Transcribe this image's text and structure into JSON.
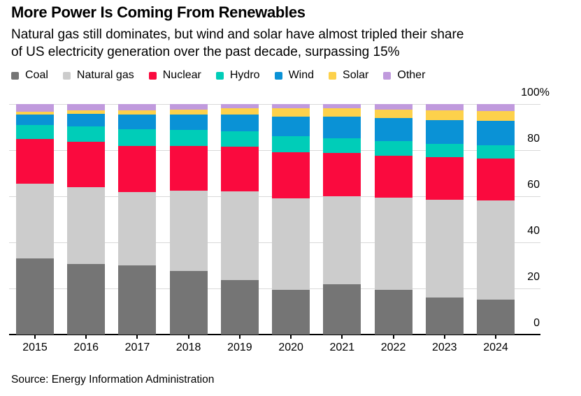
{
  "header": {
    "title": "More Power Is Coming From Renewables",
    "subtitle_lines": [
      "Natural gas still dominates, but wind and solar have almost tripled their share",
      "of US electricity generation over the past decade, surpassing 15%"
    ]
  },
  "chart_data": {
    "type": "bar",
    "stacked": true,
    "title": "More Power Is Coming From Renewables",
    "unit": "%",
    "ylim": [
      0,
      100
    ],
    "grid": "horizontal",
    "legend_position": "top",
    "categories": [
      "2015",
      "2016",
      "2017",
      "2018",
      "2019",
      "2020",
      "2021",
      "2022",
      "2023",
      "2024"
    ],
    "series": [
      {
        "name": "Coal",
        "color": "#757575",
        "values": [
          33.0,
          30.5,
          30.0,
          27.5,
          23.5,
          19.3,
          21.8,
          19.3,
          16.0,
          15.0
        ]
      },
      {
        "name": "Natural gas",
        "color": "#cccccc",
        "values": [
          32.3,
          33.5,
          31.7,
          35.0,
          38.5,
          39.9,
          38.2,
          40.1,
          42.5,
          43.2
        ]
      },
      {
        "name": "Nuclear",
        "color": "#fa0a3e",
        "values": [
          19.4,
          19.7,
          20.0,
          19.3,
          19.5,
          19.9,
          18.9,
          18.2,
          18.6,
          18.2
        ]
      },
      {
        "name": "Hydro",
        "color": "#00cdb8",
        "values": [
          6.3,
          6.5,
          7.4,
          7.0,
          6.6,
          7.0,
          6.3,
          6.2,
          5.7,
          5.8
        ]
      },
      {
        "name": "Wind",
        "color": "#0a92d6",
        "values": [
          4.5,
          5.5,
          6.3,
          6.5,
          7.3,
          8.3,
          9.2,
          10.2,
          10.1,
          10.4
        ]
      },
      {
        "name": "Solar",
        "color": "#fdd14b",
        "values": [
          1.1,
          1.5,
          2.0,
          2.4,
          2.7,
          3.8,
          3.9,
          3.7,
          4.3,
          4.4
        ]
      },
      {
        "name": "Other",
        "color": "#c09add",
        "values": [
          3.4,
          2.8,
          2.6,
          2.3,
          1.9,
          1.8,
          1.7,
          2.3,
          2.8,
          3.0
        ]
      }
    ],
    "y_ticks": [
      {
        "label": "100%",
        "value": 100
      },
      {
        "label": "80",
        "value": 80
      },
      {
        "label": "60",
        "value": 60
      },
      {
        "label": "40",
        "value": 40
      },
      {
        "label": "20",
        "value": 20
      },
      {
        "label": "0",
        "value": 0
      }
    ]
  },
  "footer": {
    "source": "Source: Energy Information Administration"
  }
}
